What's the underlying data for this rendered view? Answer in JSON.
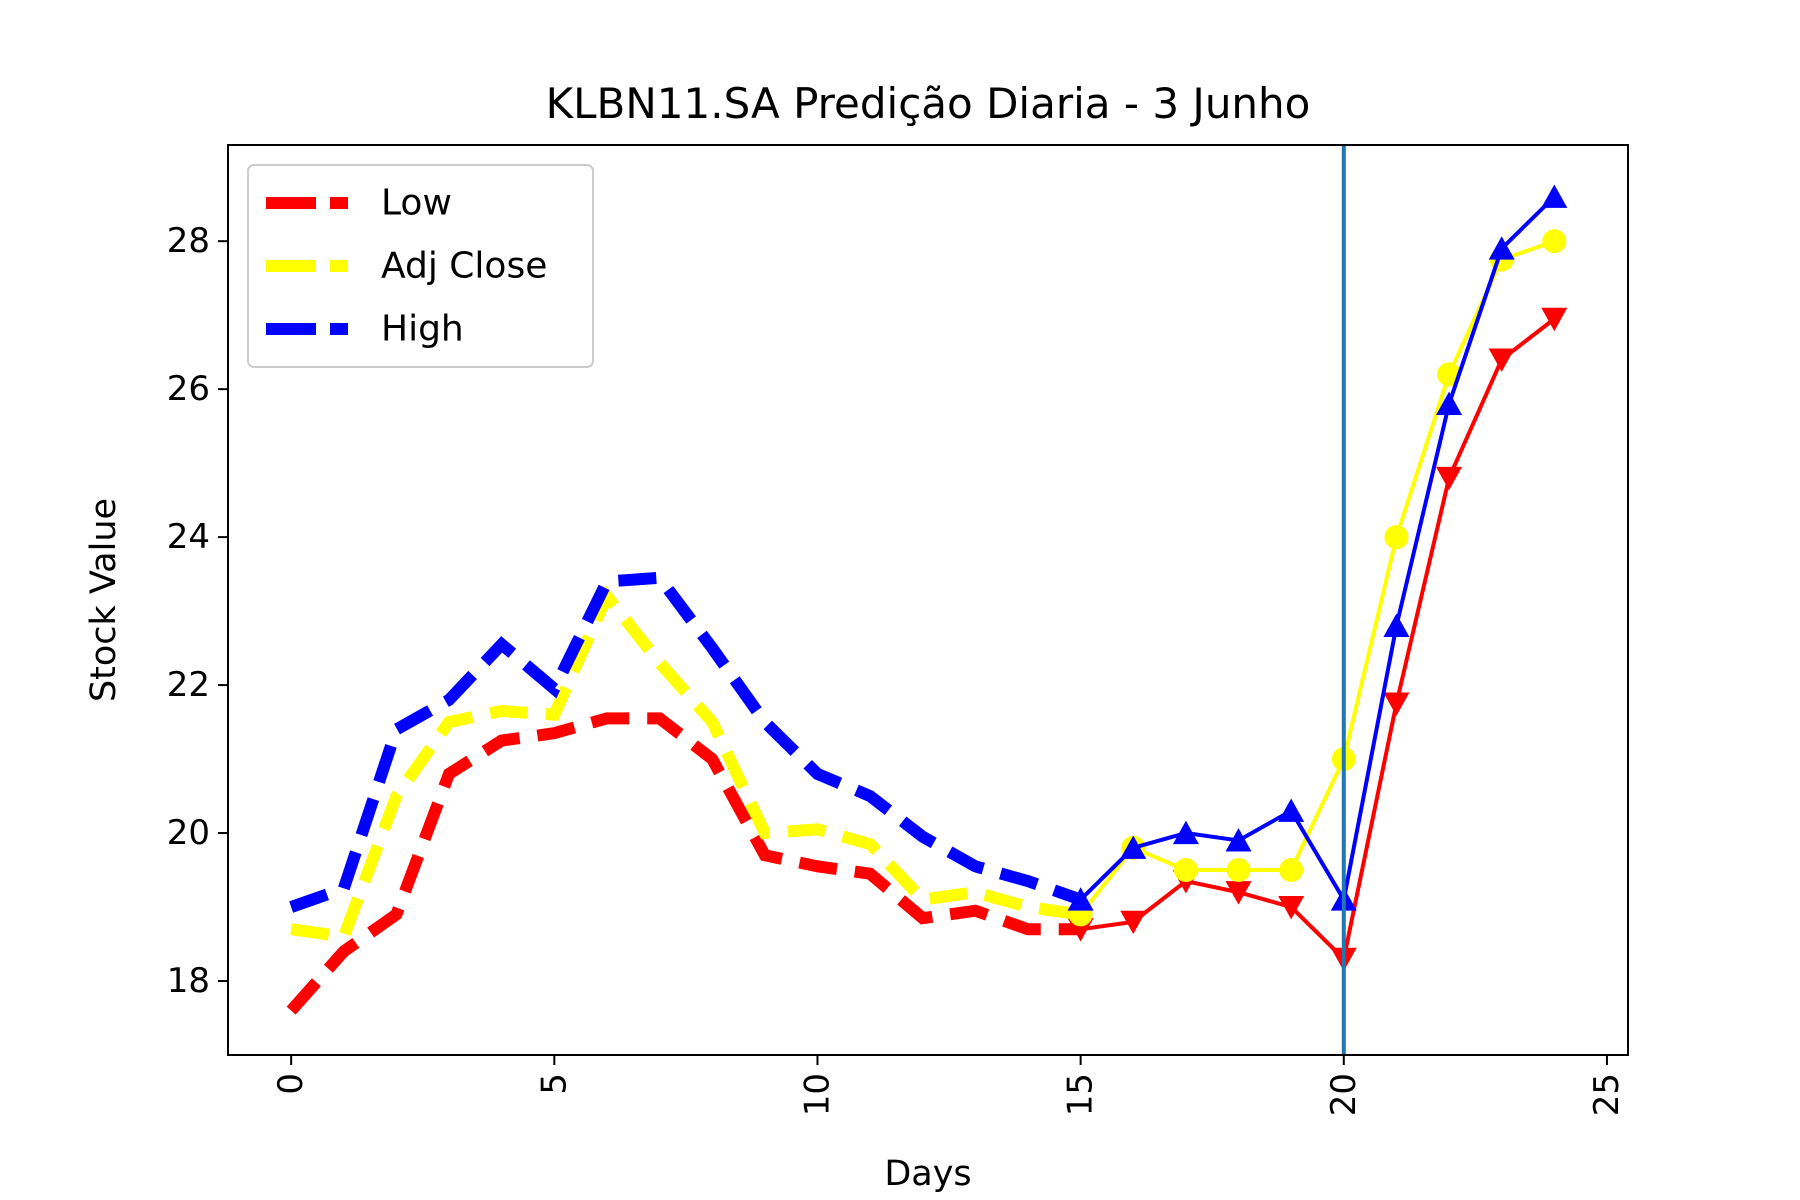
{
  "chart_data": {
    "type": "line",
    "title": "KLBN11.SA Predição Diaria - 3 Junho",
    "xlabel": "Days",
    "ylabel": "Stock Value",
    "xlim": [
      -1.2,
      25.4
    ],
    "ylim": [
      17.0,
      29.3
    ],
    "xticks": [
      0,
      5,
      10,
      15,
      20,
      25
    ],
    "yticks": [
      18,
      20,
      22,
      24,
      26,
      28
    ],
    "x_tick_rotation": 90,
    "vline": {
      "x": 20,
      "color": "#1f77b4"
    },
    "legend": {
      "position": "top-left",
      "entries": [
        "Low",
        "Adj Close",
        "High"
      ]
    },
    "series": [
      {
        "name": "Low",
        "color": "#ff0000",
        "history": {
          "x": [
            0,
            1,
            2,
            3,
            4,
            5,
            6,
            7,
            8,
            9,
            10,
            11,
            12,
            13,
            14,
            15
          ],
          "y": [
            17.6,
            18.4,
            18.9,
            20.8,
            21.25,
            21.35,
            21.55,
            21.55,
            21.0,
            19.7,
            19.55,
            19.45,
            18.85,
            18.95,
            18.7,
            18.7
          ],
          "style": "dashed"
        },
        "forecast": {
          "x": [
            15,
            16,
            17,
            18,
            19,
            20,
            21,
            22,
            23,
            24
          ],
          "y": [
            18.7,
            18.8,
            19.35,
            19.2,
            19.0,
            18.3,
            21.75,
            24.8,
            26.4,
            26.95
          ],
          "marker": "triangle-down"
        }
      },
      {
        "name": "Adj Close",
        "color": "#ffff00",
        "history": {
          "x": [
            0,
            1,
            2,
            3,
            4,
            5,
            6,
            7,
            8,
            9,
            10,
            11,
            12,
            13,
            14,
            15
          ],
          "y": [
            18.7,
            18.6,
            20.5,
            21.5,
            21.65,
            21.6,
            23.2,
            22.3,
            21.5,
            20.0,
            20.05,
            19.85,
            19.1,
            19.2,
            19.0,
            18.9
          ],
          "style": "dashed"
        },
        "forecast": {
          "x": [
            15,
            16,
            17,
            18,
            19,
            20,
            21,
            22,
            23,
            24
          ],
          "y": [
            18.9,
            19.8,
            19.5,
            19.5,
            19.5,
            21.0,
            24.0,
            26.2,
            27.75,
            28.0
          ],
          "marker": "circle"
        }
      },
      {
        "name": "High",
        "color": "#0000ff",
        "history": {
          "x": [
            0,
            1,
            2,
            3,
            4,
            5,
            6,
            7,
            8,
            9,
            10,
            11,
            12,
            13,
            14,
            15
          ],
          "y": [
            19.0,
            19.25,
            21.4,
            21.8,
            22.55,
            21.95,
            23.4,
            23.45,
            22.5,
            21.5,
            20.8,
            20.5,
            19.95,
            19.55,
            19.35,
            19.1
          ],
          "style": "dashed"
        },
        "forecast": {
          "x": [
            15,
            16,
            17,
            18,
            19,
            20,
            21,
            22,
            23,
            24
          ],
          "y": [
            19.1,
            19.8,
            20.0,
            19.9,
            20.3,
            19.1,
            22.8,
            25.8,
            27.9,
            28.6
          ],
          "marker": "triangle-up"
        }
      }
    ]
  }
}
